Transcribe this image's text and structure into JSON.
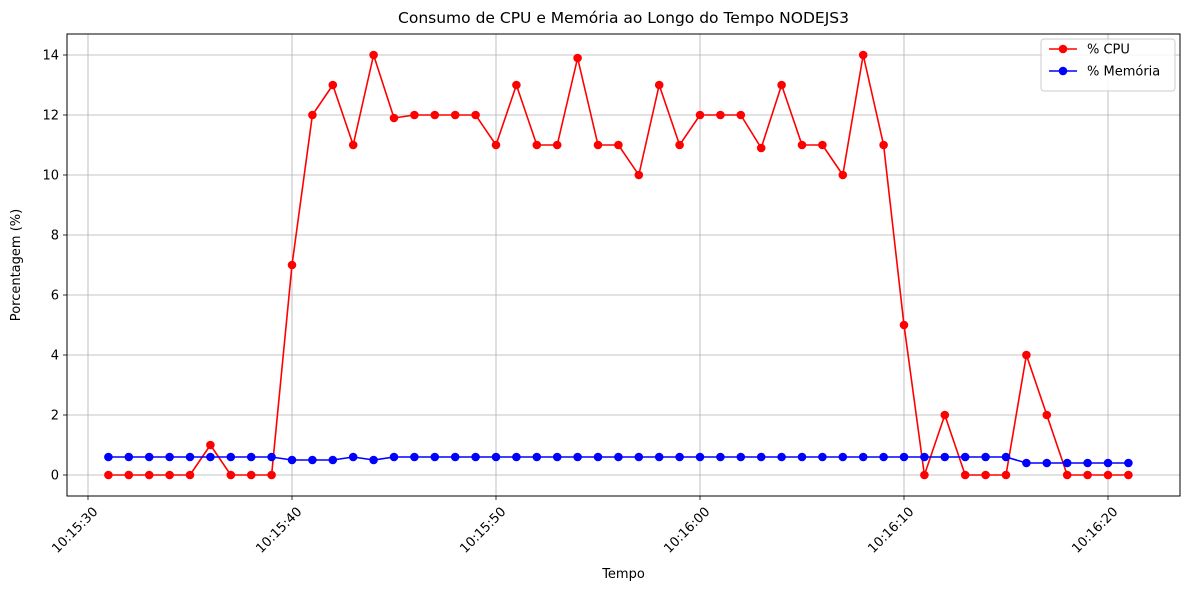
{
  "chart_data": {
    "type": "line",
    "title": "Consumo de CPU e Memória ao Longo do Tempo NODEJS3",
    "xlabel": "Tempo",
    "ylabel": "Porcentagem (%)",
    "x_ticks": [
      "10:15:30",
      "10:15:40",
      "10:15:50",
      "10:16:00",
      "10:16:10",
      "10:16:20"
    ],
    "y_ticks": [
      "0",
      "2",
      "4",
      "6",
      "8",
      "10",
      "12",
      "14"
    ],
    "x_range": [
      "10:15:30",
      "10:16:20"
    ],
    "ylim": [
      -0.7,
      14.7
    ],
    "grid": true,
    "legend_position": "top-right",
    "x": [
      "10:15:31",
      "10:15:32",
      "10:15:33",
      "10:15:34",
      "10:15:35",
      "10:15:36",
      "10:15:37",
      "10:15:38",
      "10:15:39",
      "10:15:40",
      "10:15:41",
      "10:15:42",
      "10:15:43",
      "10:15:44",
      "10:15:45",
      "10:15:46",
      "10:15:47",
      "10:15:48",
      "10:15:49",
      "10:15:50",
      "10:15:51",
      "10:15:52",
      "10:15:53",
      "10:15:54",
      "10:15:55",
      "10:15:56",
      "10:15:57",
      "10:15:58",
      "10:15:59",
      "10:16:00",
      "10:16:01",
      "10:16:02",
      "10:16:03",
      "10:16:04",
      "10:16:05",
      "10:16:06",
      "10:16:07",
      "10:16:08",
      "10:16:09",
      "10:16:10",
      "10:16:11",
      "10:16:12",
      "10:16:13",
      "10:16:14",
      "10:16:15",
      "10:16:16",
      "10:16:17",
      "10:16:18",
      "10:16:19",
      "10:16:20",
      "10:16:21"
    ],
    "series": [
      {
        "name": "% CPU",
        "color": "#ff0000",
        "values": [
          0,
          0,
          0,
          0,
          0,
          1,
          0,
          0,
          0,
          7,
          12,
          13,
          11,
          14,
          11.9,
          12,
          12,
          12,
          12,
          11,
          13,
          11,
          11,
          13.9,
          11,
          11,
          10,
          13,
          11,
          12,
          12,
          12,
          10.9,
          13,
          11,
          11,
          10,
          14,
          11,
          5,
          0,
          2,
          0,
          0,
          0,
          4,
          2,
          0,
          0,
          0,
          0
        ]
      },
      {
        "name": "% Memória",
        "color": "#0000ff",
        "values": [
          0.6,
          0.6,
          0.6,
          0.6,
          0.6,
          0.6,
          0.6,
          0.6,
          0.6,
          0.5,
          0.5,
          0.5,
          0.6,
          0.5,
          0.6,
          0.6,
          0.6,
          0.6,
          0.6,
          0.6,
          0.6,
          0.6,
          0.6,
          0.6,
          0.6,
          0.6,
          0.6,
          0.6,
          0.6,
          0.6,
          0.6,
          0.6,
          0.6,
          0.6,
          0.6,
          0.6,
          0.6,
          0.6,
          0.6,
          0.6,
          0.6,
          0.6,
          0.6,
          0.6,
          0.6,
          0.4,
          0.4,
          0.4,
          0.4,
          0.4,
          0.4
        ]
      }
    ]
  }
}
